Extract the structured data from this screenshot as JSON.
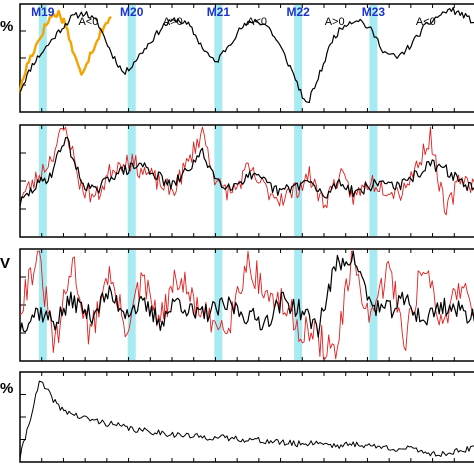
{
  "chart_data": [
    {
      "type": "line",
      "panel": "top",
      "ylabel_fragment": "%",
      "minima_labels": [
        "M19",
        "M20",
        "M21",
        "M22",
        "M23"
      ],
      "minima_x": [
        0.05,
        0.245,
        0.435,
        0.61,
        0.775
      ],
      "polarity_labels": [
        {
          "text": "A<0",
          "x": 0.15
        },
        {
          "text": "A>0",
          "x": 0.335
        },
        {
          "text": "A<0",
          "x": 0.52
        },
        {
          "text": "A>0",
          "x": 0.69
        },
        {
          "text": "A<0",
          "x": 0.89
        }
      ],
      "series": [
        {
          "color": "#000000",
          "values": [
            0.2,
            0.45,
            0.6,
            0.75,
            0.88,
            0.92,
            0.82,
            0.55,
            0.35,
            0.5,
            0.65,
            0.8,
            0.86,
            0.8,
            0.6,
            0.45,
            0.62,
            0.78,
            0.85,
            0.8,
            0.6,
            0.35,
            0.05,
            0.35,
            0.68,
            0.82,
            0.86,
            0.75,
            0.55,
            0.5,
            0.62,
            0.78,
            0.88,
            0.95,
            0.9,
            0.82
          ]
        },
        {
          "color": "#f4a300",
          "values": [
            0.2,
            0.45,
            0.6,
            0.75,
            0.88,
            0.92,
            0.82,
            0.55,
            0.35,
            0.5,
            0.65,
            0.8,
            0.86
          ]
        }
      ]
    },
    {
      "type": "line",
      "panel": "second",
      "series": [
        {
          "color": "#000000",
          "values": [
            0.3,
            0.45,
            0.55,
            0.9,
            0.5,
            0.4,
            0.55,
            0.6,
            0.65,
            0.55,
            0.45,
            0.6,
            0.75,
            0.5,
            0.45,
            0.55,
            0.5,
            0.4,
            0.45,
            0.5,
            0.35,
            0.5,
            0.4,
            0.45,
            0.5,
            0.45,
            0.55,
            0.65,
            0.6,
            0.5,
            0.4
          ]
        },
        {
          "color": "#e02020",
          "values": [
            0.35,
            0.5,
            0.7,
            1.0,
            0.45,
            0.35,
            0.6,
            0.7,
            0.6,
            0.5,
            0.4,
            0.65,
            0.95,
            0.45,
            0.4,
            0.6,
            0.45,
            0.35,
            0.4,
            0.55,
            0.3,
            0.55,
            0.35,
            0.5,
            0.45,
            0.4,
            0.6,
            0.9,
            0.2,
            0.55,
            0.45
          ]
        }
      ]
    },
    {
      "type": "line",
      "panel": "third",
      "ylabel_fragment": "V",
      "series": [
        {
          "color": "#000000",
          "values": [
            0.3,
            0.45,
            0.35,
            0.55,
            0.4,
            0.6,
            0.45,
            0.5,
            0.35,
            0.55,
            0.4,
            0.45,
            0.5,
            0.4,
            0.35,
            0.55,
            0.45,
            0.3,
            0.85,
            0.95,
            0.5,
            0.45,
            0.55,
            0.35,
            0.5,
            0.45,
            0.4
          ]
        },
        {
          "color": "#e02020",
          "values": [
            0.5,
            0.95,
            0.1,
            0.9,
            0.2,
            0.8,
            0.3,
            0.7,
            0.35,
            0.75,
            0.5,
            0.3,
            0.4,
            0.9,
            0.6,
            0.5,
            0.3,
            0.2,
            0.05,
            0.95,
            0.3,
            0.85,
            0.2,
            0.9,
            0.3,
            0.7,
            0.5
          ]
        }
      ]
    },
    {
      "type": "line",
      "panel": "bottom",
      "ylabel_fragment": "%",
      "series": [
        {
          "color": "#000000",
          "values": [
            0.05,
            0.9,
            0.6,
            0.5,
            0.45,
            0.4,
            0.35,
            0.33,
            0.3,
            0.28,
            0.27,
            0.26,
            0.24,
            0.22,
            0.2,
            0.22,
            0.18,
            0.2,
            0.17,
            0.15,
            0.14,
            0.08,
            0.12,
            0.15
          ]
        }
      ]
    }
  ]
}
